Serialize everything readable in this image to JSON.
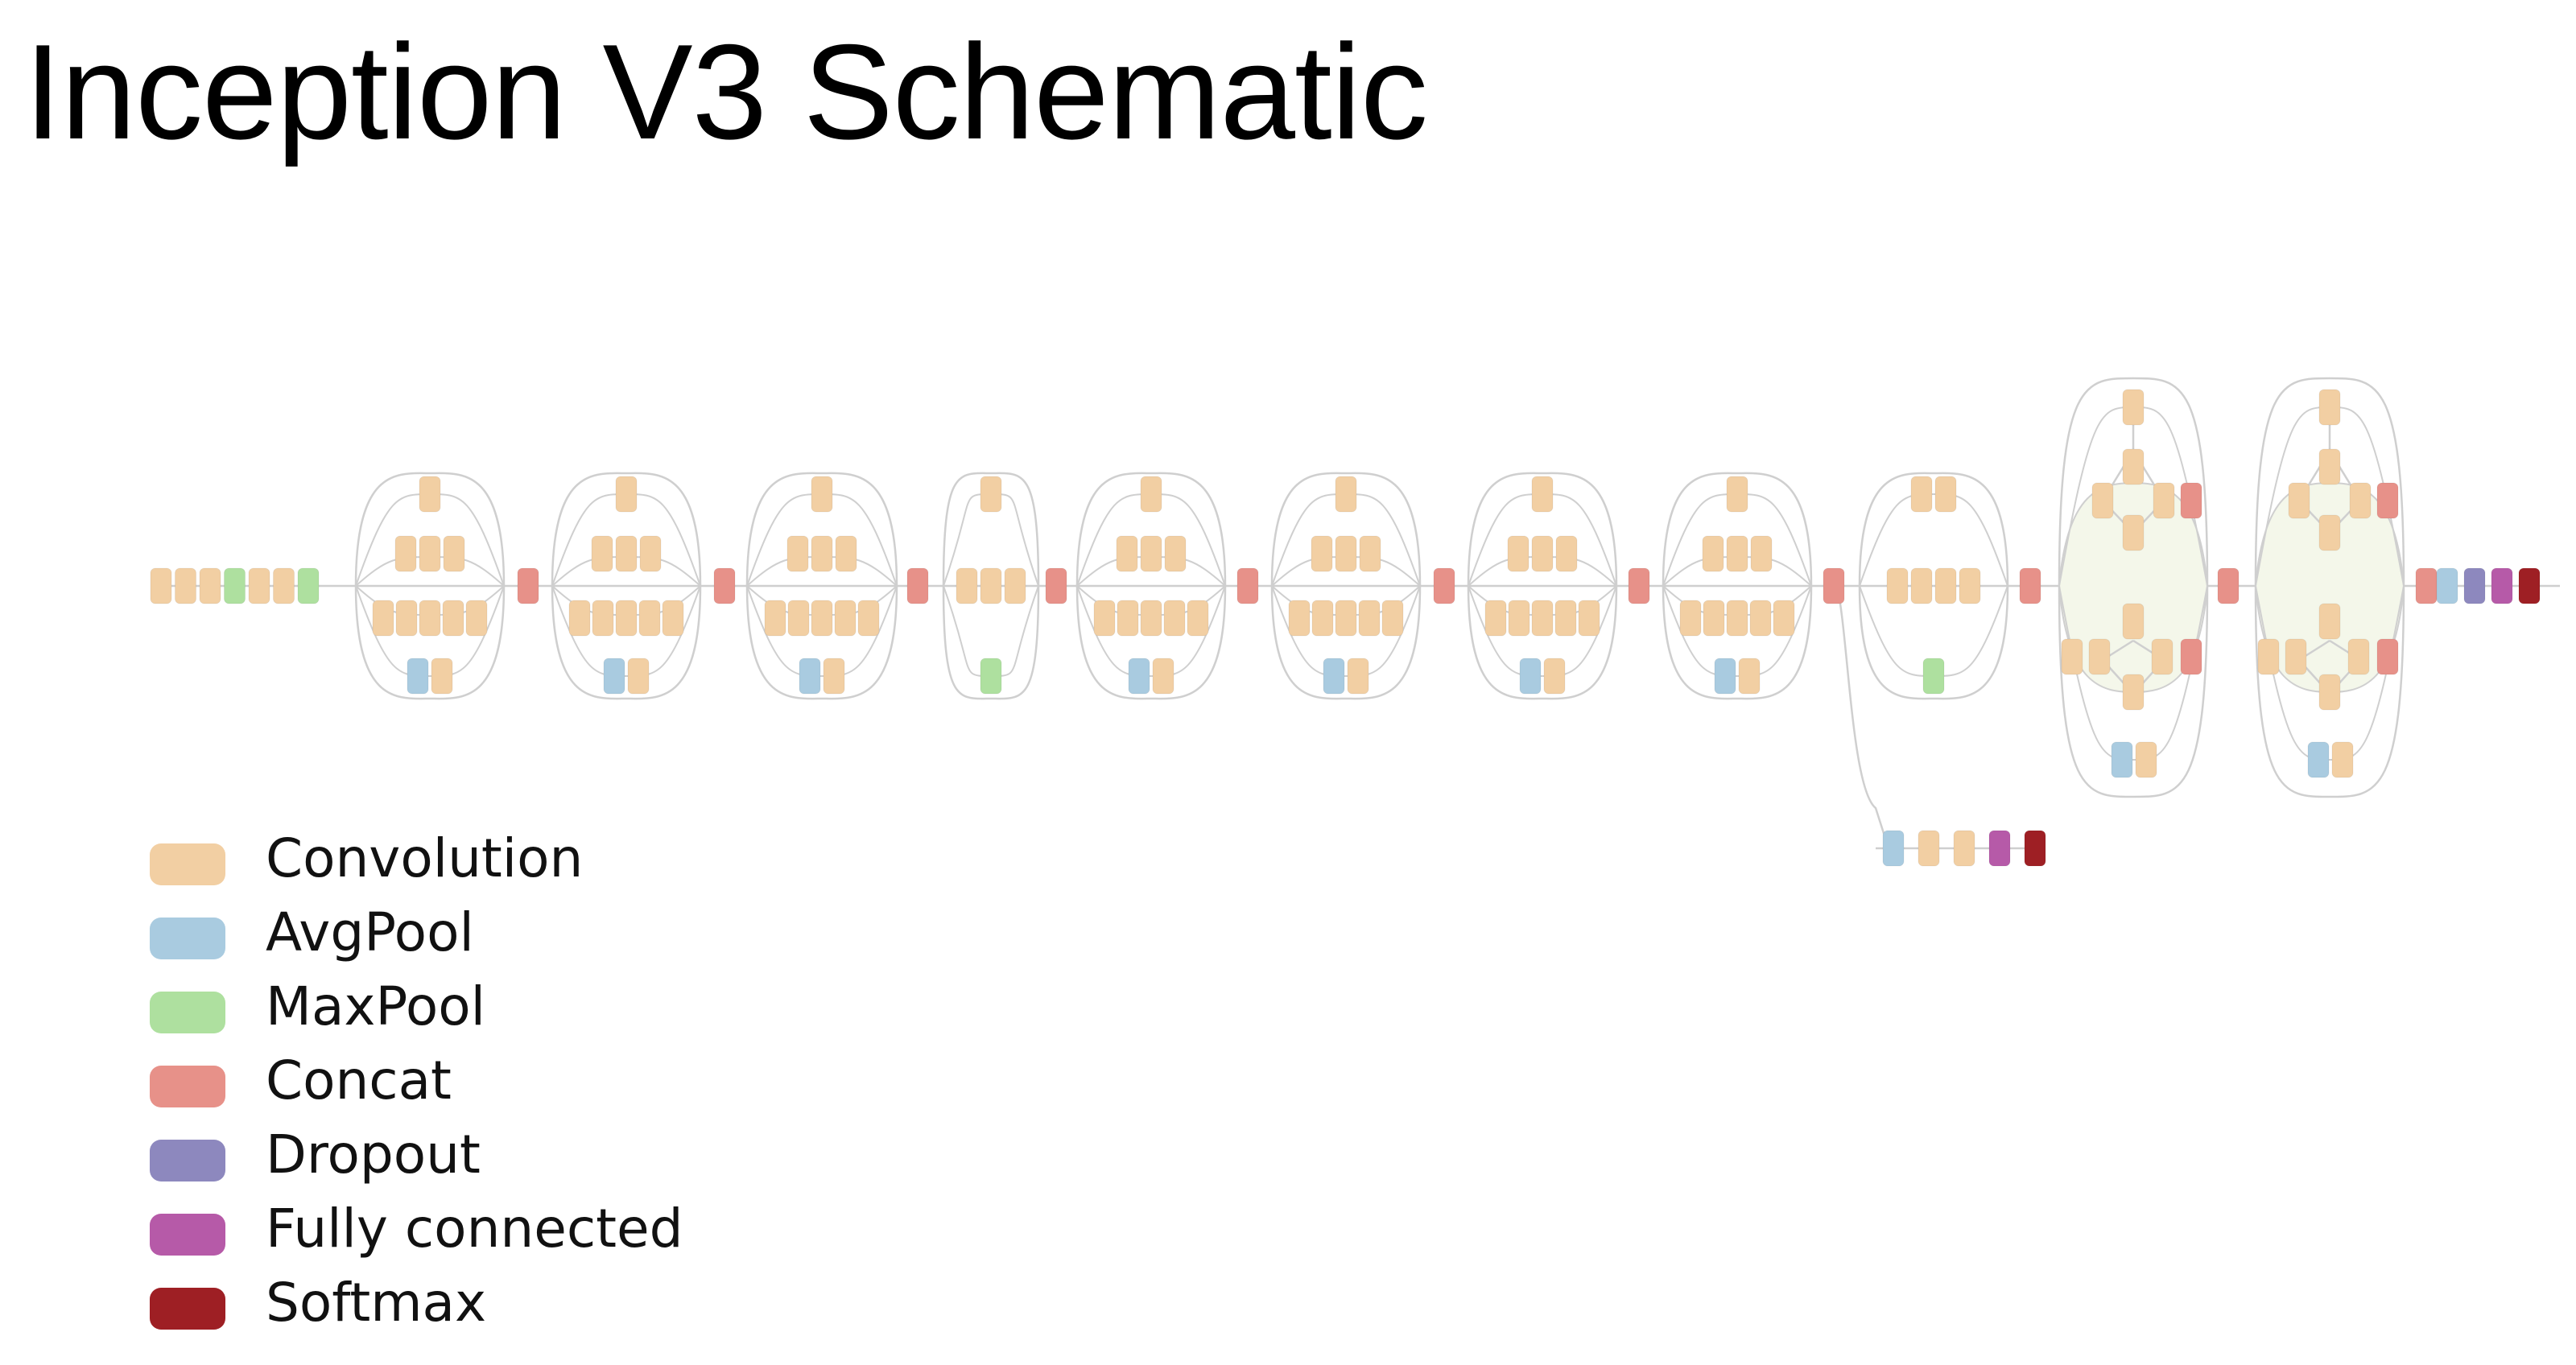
{
  "title": "Inception V3 Schematic",
  "colors": {
    "convolution": "#f2cfa3",
    "avgpool": "#a9cbe0",
    "maxpool": "#aee09f",
    "concat": "#e79189",
    "dropout": "#8d88be",
    "fully_connected": "#b65aa8",
    "softmax": "#9e1f24",
    "connector": "#cfcfcf",
    "tint": "#f4f7ea"
  },
  "legend": [
    {
      "label": "Convolution",
      "color": "#f2cfa3"
    },
    {
      "label": "AvgPool",
      "color": "#a9cbe0"
    },
    {
      "label": "MaxPool",
      "color": "#aee09f"
    },
    {
      "label": "Concat",
      "color": "#e79189"
    },
    {
      "label": "Dropout",
      "color": "#8d88be"
    },
    {
      "label": "Fully connected",
      "color": "#b65aa8"
    },
    {
      "label": "Softmax",
      "color": "#9e1f24"
    }
  ],
  "network": {
    "stem": [
      "convolution",
      "convolution",
      "convolution",
      "maxpool",
      "convolution",
      "convolution",
      "maxpool"
    ],
    "inception_modules": [
      {
        "type": "A",
        "branches": [
          [
            "convolution"
          ],
          [
            "convolution",
            "convolution",
            "convolution"
          ],
          [
            "convolution",
            "convolution",
            "convolution",
            "convolution",
            "convolution"
          ],
          [
            "avgpool",
            "convolution"
          ]
        ]
      },
      {
        "type": "A",
        "branches": [
          [
            "convolution"
          ],
          [
            "convolution",
            "convolution",
            "convolution"
          ],
          [
            "convolution",
            "convolution",
            "convolution",
            "convolution",
            "convolution"
          ],
          [
            "avgpool",
            "convolution"
          ]
        ]
      },
      {
        "type": "A",
        "branches": [
          [
            "convolution"
          ],
          [
            "convolution",
            "convolution",
            "convolution"
          ],
          [
            "convolution",
            "convolution",
            "convolution",
            "convolution",
            "convolution"
          ],
          [
            "avgpool",
            "convolution"
          ]
        ]
      },
      {
        "type": "reduction",
        "branches": [
          [
            "convolution"
          ],
          [
            "convolution",
            "convolution",
            "convolution"
          ],
          [
            "maxpool"
          ]
        ]
      },
      {
        "type": "B",
        "branches": [
          [
            "convolution"
          ],
          [
            "convolution",
            "convolution",
            "convolution"
          ],
          [
            "convolution",
            "convolution",
            "convolution",
            "convolution",
            "convolution"
          ],
          [
            "avgpool",
            "convolution"
          ]
        ]
      },
      {
        "type": "B",
        "branches": [
          [
            "convolution"
          ],
          [
            "convolution",
            "convolution",
            "convolution"
          ],
          [
            "convolution",
            "convolution",
            "convolution",
            "convolution",
            "convolution"
          ],
          [
            "avgpool",
            "convolution"
          ]
        ]
      },
      {
        "type": "B",
        "branches": [
          [
            "convolution"
          ],
          [
            "convolution",
            "convolution",
            "convolution"
          ],
          [
            "convolution",
            "convolution",
            "convolution",
            "convolution",
            "convolution"
          ],
          [
            "avgpool",
            "convolution"
          ]
        ]
      },
      {
        "type": "B",
        "branches": [
          [
            "convolution"
          ],
          [
            "convolution",
            "convolution",
            "convolution"
          ],
          [
            "convolution",
            "convolution",
            "convolution",
            "convolution",
            "convolution"
          ],
          [
            "avgpool",
            "convolution"
          ]
        ]
      },
      {
        "type": "reduction",
        "branches": [
          [
            "convolution",
            "convolution"
          ],
          [
            "convolution",
            "convolution",
            "convolution",
            "convolution"
          ],
          [
            "maxpool"
          ]
        ]
      },
      {
        "type": "C"
      },
      {
        "type": "C"
      }
    ],
    "head": [
      "concat",
      "avgpool",
      "dropout",
      "fully_connected",
      "softmax"
    ],
    "auxiliary_head": [
      "avgpool",
      "convolution",
      "convolution",
      "fully_connected",
      "softmax"
    ]
  }
}
